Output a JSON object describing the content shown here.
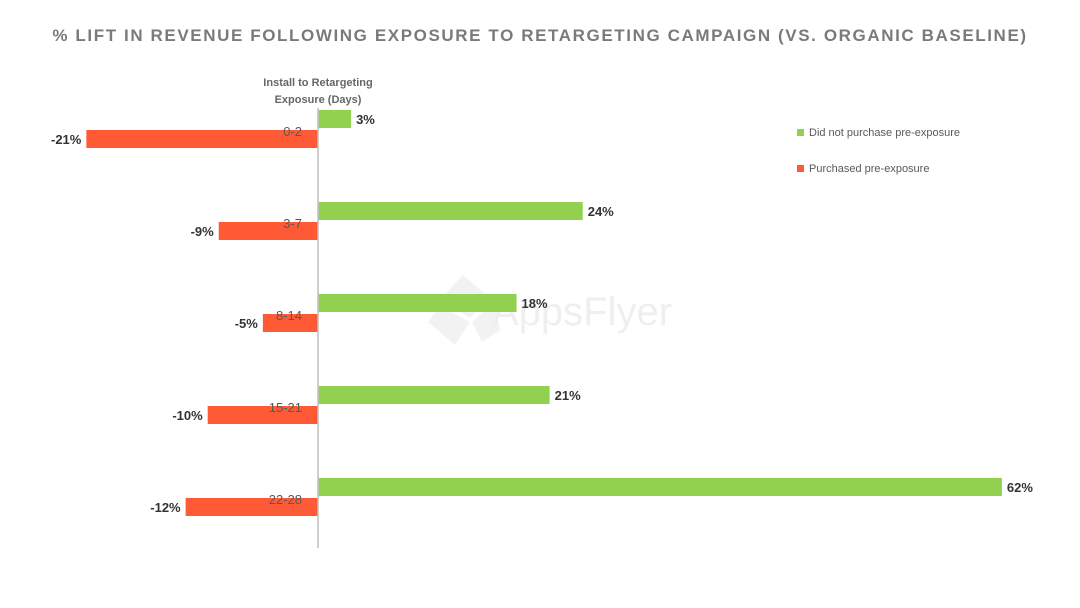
{
  "chart_data": {
    "type": "bar",
    "orientation": "horizontal",
    "title": "% LIFT IN REVENUE FOLLOWING EXPOSURE TO RETARGETING CAMPAIGN (VS. ORGANIC BASELINE)",
    "ylabel_line1": "Install to Retargeting",
    "ylabel_line2": "Exposure (Days)",
    "categories": [
      "0-2",
      "3-7",
      "8-14",
      "15-21",
      "22-28"
    ],
    "series": [
      {
        "name": "Did not purchase pre-exposure",
        "color": "#92d050",
        "values": [
          3,
          24,
          18,
          21,
          62
        ],
        "labels": [
          "3%",
          "24%",
          "18%",
          "21%",
          "62%"
        ]
      },
      {
        "name": "Purchased pre-exposure",
        "color": "#ff5a36",
        "values": [
          -21,
          -9,
          -5,
          -10,
          -12
        ],
        "labels": [
          "-21%",
          "-9%",
          "-5%",
          "-10%",
          "-12%"
        ]
      }
    ],
    "legend_position": "top-right",
    "grid": false,
    "watermark": "AppsFlyer"
  }
}
